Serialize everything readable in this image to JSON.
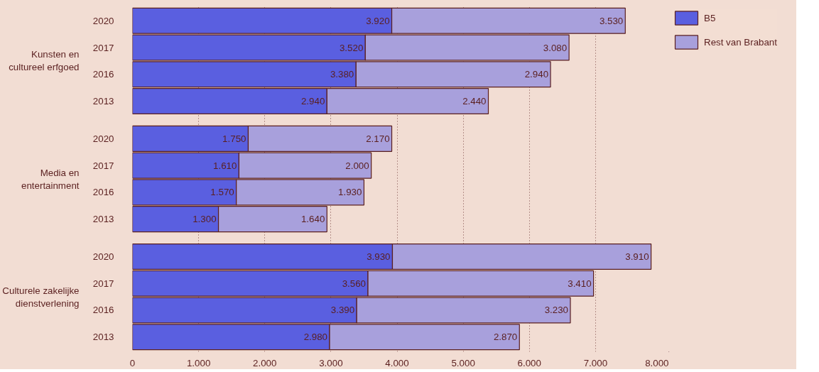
{
  "chart_data": {
    "type": "bar",
    "orientation": "horizontal",
    "stacked": true,
    "categories": [
      "2020",
      "2017",
      "2016",
      "2013",
      "2020",
      "2017",
      "2016",
      "2013",
      "2020",
      "2017",
      "2016",
      "2013"
    ],
    "annotations": [
      "Kunsten en cultureel erfgoed",
      "Media en entertainment",
      "Culturele zakelijke dienstverlening"
    ],
    "series": [
      {
        "name": "B5",
        "color": "#5a5fe0",
        "values": [
          3920,
          3520,
          3380,
          2940,
          1750,
          1610,
          1570,
          1300,
          3930,
          3560,
          3390,
          2980
        ],
        "value_labels": [
          "3.920",
          "3.520",
          "3.380",
          "2.940",
          "1.750",
          "1.610",
          "1.570",
          "1.300",
          "3.930",
          "3.560",
          "3.390",
          "2.980"
        ]
      },
      {
        "name": "Rest van Brabant",
        "color": "#a8a0dc",
        "values": [
          3530,
          3080,
          2940,
          2440,
          2170,
          2000,
          1930,
          1640,
          3910,
          3410,
          3230,
          2870
        ],
        "value_labels": [
          "3.530",
          "3.080",
          "2.940",
          "2.440",
          "2.170",
          "2.000",
          "1.930",
          "1.640",
          "3.910",
          "3.410",
          "3.230",
          "2.870"
        ]
      }
    ],
    "xlim": [
      0,
      8000
    ],
    "xticks": [
      0,
      {
        "value": 1000,
        "label": "1.000"
      },
      {
        "value": 2000,
        "label": "2.000"
      },
      {
        "value": 3000,
        "label": "3.000"
      },
      {
        "value": 4000,
        "label": "4.000"
      },
      {
        "value": 5000,
        "label": "5.000"
      },
      {
        "value": 6000,
        "label": "6.000"
      },
      {
        "value": 7000,
        "label": "7.000"
      },
      {
        "value": 8000,
        "label": "8.000"
      }
    ],
    "grid": "x",
    "legend": "top right"
  }
}
